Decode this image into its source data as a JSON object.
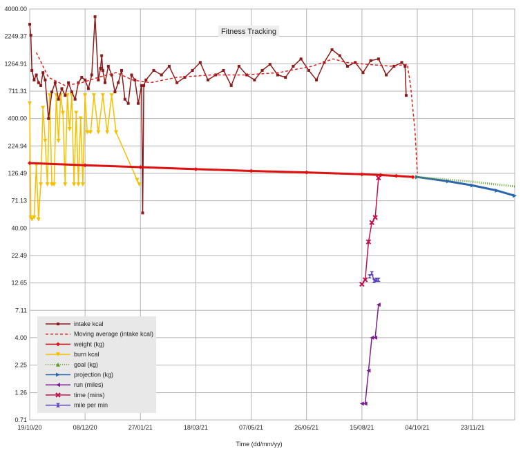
{
  "chart_data": {
    "type": "line",
    "title": "Fitness Tracking",
    "xlabel": "Time (dd/mm/yy)",
    "ylabel": "",
    "yscale": "log",
    "ylim": [
      0.71,
      4000
    ],
    "xlim": [
      "2020-10-19",
      "2021-12-31"
    ],
    "grid": true,
    "legend_position": "bottom-left",
    "ytick_labels": [
      "4000.00",
      "2249.37",
      "1264.91",
      "711.31",
      "400.00",
      "224.94",
      "126.49",
      "71.13",
      "40.00",
      "22.49",
      "12.65",
      "7.11",
      "4.00",
      "2.25",
      "1.26",
      "0.71"
    ],
    "ytick_values": [
      4000,
      2249.37,
      1264.91,
      711.31,
      400,
      224.94,
      126.49,
      71.13,
      40,
      22.49,
      12.65,
      7.11,
      4,
      2.25,
      1.26,
      0.71
    ],
    "xtick_labels": [
      "19/10/20",
      "08/12/20",
      "27/01/21",
      "18/03/21",
      "07/05/21",
      "26/06/21",
      "15/08/21",
      "04/10/21",
      "23/11/21"
    ],
    "xtick_values": [
      "2020-10-19",
      "2020-12-08",
      "2021-01-27",
      "2021-03-18",
      "2021-05-07",
      "2021-06-26",
      "2021-08-15",
      "2021-10-04",
      "2021-11-23"
    ],
    "series": [
      {
        "name": "intake kcal",
        "color": "#8b1a1a",
        "marker": "square",
        "style": "solid",
        "x": [
          "2020-10-19",
          "2020-10-20",
          "2020-10-21",
          "2020-10-23",
          "2020-10-25",
          "2020-10-27",
          "2020-10-29",
          "2020-10-31",
          "2020-11-02",
          "2020-11-05",
          "2020-11-08",
          "2020-11-11",
          "2020-11-14",
          "2020-11-17",
          "2020-11-20",
          "2020-11-23",
          "2020-11-26",
          "2020-11-29",
          "2020-12-02",
          "2020-12-05",
          "2020-12-08",
          "2020-12-11",
          "2020-12-14",
          "2020-12-17",
          "2020-12-20",
          "2020-12-22",
          "2020-12-23",
          "2020-12-24",
          "2020-12-26",
          "2020-12-29",
          "2021-01-01",
          "2021-01-04",
          "2021-01-07",
          "2021-01-10",
          "2021-01-13",
          "2021-01-16",
          "2021-01-19",
          "2021-01-22",
          "2021-01-25",
          "2021-01-28",
          "2021-01-29",
          "2021-01-30",
          "2021-02-01",
          "2021-02-08",
          "2021-02-15",
          "2021-02-22",
          "2021-03-01",
          "2021-03-08",
          "2021-03-15",
          "2021-03-22",
          "2021-03-29",
          "2021-04-05",
          "2021-04-12",
          "2021-04-19",
          "2021-04-26",
          "2021-05-03",
          "2021-05-10",
          "2021-05-17",
          "2021-05-24",
          "2021-05-31",
          "2021-06-07",
          "2021-06-14",
          "2021-06-21",
          "2021-06-28",
          "2021-07-05",
          "2021-07-12",
          "2021-07-19",
          "2021-07-26",
          "2021-08-02",
          "2021-08-09",
          "2021-08-16",
          "2021-08-23",
          "2021-08-30",
          "2021-09-06",
          "2021-09-13",
          "2021-09-20",
          "2021-09-23",
          "2021-09-24"
        ],
        "y": [
          2900,
          2300,
          1100,
          900,
          1000,
          850,
          800,
          1050,
          900,
          400,
          700,
          850,
          600,
          750,
          650,
          850,
          700,
          600,
          850,
          950,
          900,
          750,
          1000,
          3400,
          900,
          1150,
          1500,
          1100,
          850,
          1200,
          1000,
          700,
          850,
          1100,
          600,
          550,
          1000,
          900,
          550,
          800,
          55,
          800,
          900,
          1100,
          1000,
          1200,
          850,
          950,
          1100,
          1300,
          900,
          1000,
          1100,
          800,
          1200,
          1000,
          900,
          1100,
          1250,
          1000,
          950,
          1200,
          1400,
          1100,
          900,
          1300,
          1700,
          1500,
          1200,
          1300,
          1050,
          1350,
          1400,
          1000,
          1200,
          1300,
          1200,
          650
        ]
      },
      {
        "name": "Moving average (intake kcal)",
        "color": "#e02020",
        "style": "dashed",
        "x": [
          "2020-10-25",
          "2020-11-05",
          "2020-11-20",
          "2020-12-05",
          "2020-12-20",
          "2021-01-05",
          "2021-01-20",
          "2021-02-05",
          "2021-03-01",
          "2021-04-01",
          "2021-05-01",
          "2021-06-01",
          "2021-07-01",
          "2021-07-20",
          "2021-08-01",
          "2021-08-20",
          "2021-09-10",
          "2021-09-25",
          "2021-09-28",
          "2021-10-02",
          "2021-10-04"
        ],
        "y": [
          1600,
          950,
          800,
          850,
          950,
          1050,
          900,
          850,
          950,
          1000,
          1000,
          1050,
          1200,
          1400,
          1300,
          1250,
          1200,
          1250,
          800,
          300,
          127
        ]
      },
      {
        "name": "weight (kg)",
        "color": "#e01010",
        "marker": "diamond",
        "style": "solid",
        "x": [
          "2020-10-19",
          "2020-12-08",
          "2021-01-27",
          "2021-03-18",
          "2021-05-07",
          "2021-06-26",
          "2021-08-15",
          "2021-09-01",
          "2021-09-15",
          "2021-09-30"
        ],
        "y": [
          157,
          150,
          144,
          138,
          133,
          129,
          124,
          122,
          120,
          117
        ]
      },
      {
        "name": "burn kcal",
        "color": "#f5c000",
        "marker": "triangle-down",
        "style": "solid",
        "x": [
          "2020-10-19",
          "2020-10-20",
          "2020-10-21",
          "2020-10-23",
          "2020-10-25",
          "2020-10-27",
          "2020-10-29",
          "2020-10-31",
          "2020-11-02",
          "2020-11-04",
          "2020-11-06",
          "2020-11-08",
          "2020-11-10",
          "2020-11-12",
          "2020-11-14",
          "2020-11-16",
          "2020-11-18",
          "2020-11-20",
          "2020-11-22",
          "2020-11-24",
          "2020-11-26",
          "2020-11-28",
          "2020-11-30",
          "2020-12-02",
          "2020-12-04",
          "2020-12-06",
          "2020-12-08",
          "2020-12-10",
          "2020-12-13",
          "2020-12-16",
          "2020-12-20",
          "2020-12-24",
          "2020-12-28",
          "2021-01-01",
          "2021-01-05",
          "2021-01-24",
          "2021-01-26"
        ],
        "y": [
          550,
          50,
          48,
          50,
          150,
          48,
          100,
          500,
          250,
          100,
          650,
          100,
          100,
          650,
          250,
          650,
          450,
          100,
          650,
          320,
          650,
          100,
          450,
          100,
          400,
          100,
          650,
          300,
          300,
          650,
          300,
          650,
          300,
          650,
          300,
          110,
          100
        ]
      },
      {
        "name": "goal (kg)",
        "color": "#5a9e20",
        "marker": "triangle-up",
        "style": "dotted",
        "x": [
          "2020-10-19",
          "2021-01-27",
          "2021-05-07",
          "2021-08-15",
          "2021-10-04",
          "2021-11-23",
          "2021-12-31"
        ],
        "y": [
          157,
          144,
          133,
          124,
          117,
          106,
          96
        ]
      },
      {
        "name": "projection (kg)",
        "color": "#2a66b0",
        "marker": "triangle-right",
        "style": "solid",
        "x": [
          "2021-10-04",
          "2021-11-01",
          "2021-11-23",
          "2021-12-15",
          "2021-12-31"
        ],
        "y": [
          117,
          107,
          98,
          88,
          79
        ]
      },
      {
        "name": "run (miles)",
        "color": "#7a1f8f",
        "marker": "triangle-left",
        "style": "solid",
        "x": [
          "2021-08-15",
          "2021-08-18",
          "2021-08-21",
          "2021-08-24",
          "2021-08-27",
          "2021-08-30"
        ],
        "y": [
          1.0,
          1.0,
          2.0,
          4.0,
          4.0,
          8.0
        ]
      },
      {
        "name": "time (mins)",
        "color": "#c0104a",
        "marker": "x",
        "style": "solid",
        "x": [
          "2021-08-15",
          "2021-08-18",
          "2021-08-21",
          "2021-08-24",
          "2021-08-27",
          "2021-08-30"
        ],
        "y": [
          12.3,
          13.5,
          30,
          45,
          50,
          115
        ]
      },
      {
        "name": "mile per min",
        "color": "#5840b8",
        "marker": "hourglass",
        "style": "solid",
        "x": [
          "2021-08-22",
          "2021-08-24",
          "2021-08-26",
          "2021-08-28",
          "2021-08-30"
        ],
        "y": [
          14.5,
          15.5,
          13.2,
          13.5,
          13.5
        ]
      }
    ]
  }
}
